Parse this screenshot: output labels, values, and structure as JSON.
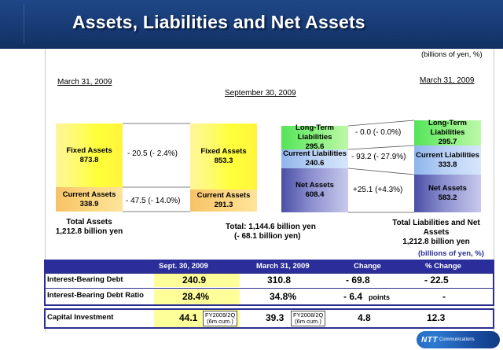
{
  "title": "Assets, Liabilities and Net Assets",
  "unit_top": "(billions of  yen, %)",
  "dates": {
    "left": "March 31, 2009",
    "center": "September 30, 2009",
    "right": "March 31, 2009"
  },
  "assets": {
    "march": {
      "fixed": {
        "label": "Fixed Assets",
        "value": "873.8"
      },
      "current": {
        "label": "Current Assets",
        "value": "338.9"
      },
      "total_label": "Total Assets",
      "total_value": "1,212.8 billion yen"
    },
    "sept": {
      "fixed": {
        "label": "Fixed Assets",
        "value": "853.3"
      },
      "current": {
        "label": "Current Assets",
        "value": "291.3"
      }
    },
    "change_fixed": "- 20.5 (- 2.4%)",
    "change_current": "- 47.5 (- 14.0%)"
  },
  "total_center": {
    "line1": "Total: 1,144.6 billion yen",
    "line2": "(- 68.1 billion yen)"
  },
  "liabilities": {
    "sept": {
      "ltl": {
        "label1": "Long-Term",
        "label2": "Liabilities",
        "value": "295.6"
      },
      "cl": {
        "label": "Current Liabilities",
        "value": "240.6"
      },
      "na": {
        "label": "Net Assets",
        "value": "608.4"
      }
    },
    "march": {
      "ltl": {
        "label1": "Long-Term",
        "label2": "Liabilities",
        "value": "295.7"
      },
      "cl": {
        "label": "Current Liabilities",
        "value": "333.8"
      },
      "na": {
        "label": "Net Assets",
        "value": "583.2"
      }
    },
    "change_ltl": "- 0.0 (- 0.0%)",
    "change_cl": "- 93.2 (- 27.9%)",
    "change_na": "+25.1 (+4.3%)",
    "total_line1": "Total Liabilities and Net",
    "total_line2": "Assets",
    "total_line3": "1,212.8 billion yen"
  },
  "unit_table": "(billions of yen, %)",
  "table": {
    "headers": [
      "Sept. 30, 2009",
      "March 31,  2009",
      "Change",
      "% Change"
    ],
    "rows": [
      {
        "label": "Interest-Bearing Debt",
        "sept": "240.9",
        "march": "310.8",
        "change": "- 69.8",
        "pct": "- 22.5"
      },
      {
        "label": "Interest-Bearing Debt Ratio",
        "sept": "28.4%",
        "march": "34.8%",
        "change": "- 6.4",
        "change_unit": "points",
        "pct": "-"
      }
    ],
    "capex": {
      "label": "Capital Investment",
      "sept": "44.1",
      "sept_note1": "FY2009/2Q",
      "sept_note2": "(6m cum.)",
      "march": "39.3",
      "march_note1": "FY2008/2Q",
      "march_note2": "(6m cum.)",
      "change": "4.8",
      "pct": "12.3"
    }
  },
  "logo": {
    "mark": "NTT",
    "text": "Communications"
  },
  "chart_data": {
    "type": "bar",
    "title": "Assets, Liabilities and Net Assets",
    "unit": "billions of yen",
    "categories": [
      "Assets (Mar 31, 2009)",
      "Assets (Sep 30, 2009)",
      "Liabilities & Net Assets (Sep 30, 2009)",
      "Liabilities & Net Assets (Mar 31, 2009)"
    ],
    "series": [
      {
        "name": "Fixed Assets",
        "values": [
          873.8,
          853.3,
          null,
          null
        ]
      },
      {
        "name": "Current Assets",
        "values": [
          338.9,
          291.3,
          null,
          null
        ]
      },
      {
        "name": "Long-Term Liabilities",
        "values": [
          null,
          null,
          295.6,
          295.7
        ]
      },
      {
        "name": "Current Liabilities",
        "values": [
          null,
          null,
          240.6,
          333.8
        ]
      },
      {
        "name": "Net Assets",
        "values": [
          null,
          null,
          608.4,
          583.2
        ]
      }
    ],
    "totals": {
      "assets_march": 1212.8,
      "assets_sept": 1144.6,
      "change": -68.1,
      "liab_march": 1212.8
    }
  }
}
